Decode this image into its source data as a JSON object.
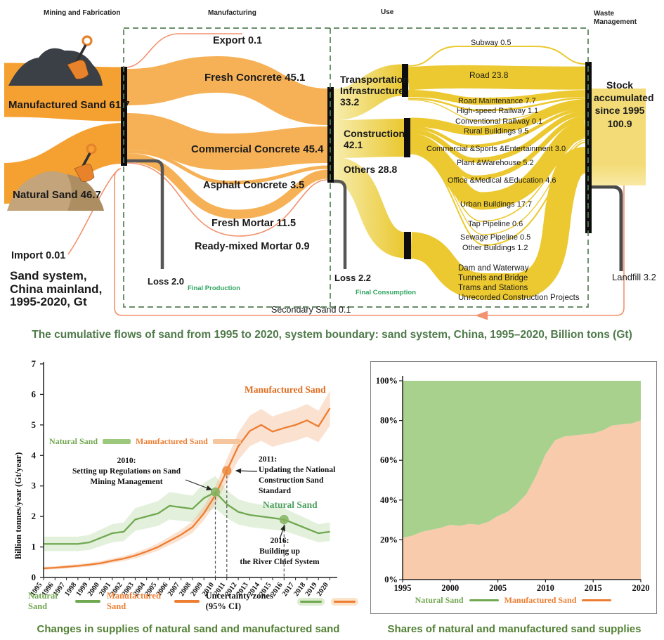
{
  "sankey": {
    "stage_headers": {
      "mining": "Mining and Fabrication",
      "manufacturing": "Manufacturing",
      "use": "Use",
      "waste": "Waste Management"
    },
    "inputs": {
      "manufactured": "Manufactured Sand 61.7",
      "natural": "Natural Sand 46.7",
      "import": "Import 0.01",
      "system_title": "Sand system,\nChina mainland,\n1995-2020, Gt"
    },
    "products": {
      "export": "Export 0.1",
      "fresh_concrete": "Fresh Concrete 45.1",
      "commercial_concrete": "Commercial Concrete 45.4",
      "asphalt_concrete": "Asphalt Concrete 3.5",
      "fresh_mortar": "Fresh Mortar 11.5",
      "ready_mixed_mortar": "Ready-mixed Mortar 0.9",
      "loss": "Loss 2.0",
      "final_production": "Final Production"
    },
    "use_sectors": {
      "transportation": "Transportation\nInfrastructure\n 33.2",
      "construction": "Construction\n42.1",
      "others": "Others 28.8",
      "loss": "Loss 2.2",
      "final_consumption": "Final Consumption"
    },
    "end_uses": {
      "subway": "Subway 0.5",
      "road": "Road 23.8",
      "road_maintenance": "Road Maintenance 7.7",
      "high_speed_railway": "High-speed Railway 1.1",
      "conventional_railway": "Conventional Railway 0.1",
      "rural_buildings": "Rural Buildings 9.5",
      "commercial_sports": "Commercial &Sports &Entertainment 3.0",
      "plant_warehouse": "Plant &Warehouse 5.2",
      "office_medical": "Office &Medical &Education 4.6",
      "urban_buildings": "Urban Buildings 17.7",
      "tap_pipeline": "Tap Pipeline 0.6",
      "sewage_pipeline": "Sewage Pipeline 0.5",
      "other_buildings": "Other Buildings 1.2",
      "dam_block": "Dam and Waterway\nTunnels and Bridge\nTrams and Stations\nUnrecorded Construction Projects"
    },
    "waste": {
      "stock": "Stock\naccumulated\nsince 1995\n100.9",
      "landfill": "Landfill 3.2",
      "secondary_sand": "Secondary Sand 0.1"
    }
  },
  "caption_top": "The cumulative flows of sand from 1995 to 2020, system boundary: sand system, China, 1995–2020, Billion tons (Gt)",
  "chart_data": [
    {
      "type": "line",
      "ylabel": "Billion tonnes/year (Gt/year)",
      "ylim": [
        0,
        7
      ],
      "yticks": [
        0,
        1,
        2,
        3,
        4,
        5,
        6,
        7
      ],
      "x": [
        1995,
        1996,
        1997,
        1998,
        1999,
        2000,
        2001,
        2002,
        2003,
        2004,
        2005,
        2006,
        2007,
        2008,
        2009,
        2010,
        2011,
        2012,
        2013,
        2014,
        2015,
        2016,
        2017,
        2018,
        2019,
        2020
      ],
      "series": [
        {
          "name": "Natural Sand",
          "color": "#6FA850",
          "values": [
            1.1,
            1.1,
            1.1,
            1.1,
            1.15,
            1.3,
            1.45,
            1.5,
            1.9,
            2.0,
            2.1,
            2.35,
            2.3,
            2.25,
            2.6,
            2.8,
            2.4,
            2.15,
            2.05,
            2.0,
            1.95,
            1.9,
            1.75,
            1.6,
            1.45,
            1.5
          ]
        },
        {
          "name": "Manufactured Sand",
          "color": "#ED7D31",
          "values": [
            0.3,
            0.32,
            0.35,
            0.38,
            0.42,
            0.47,
            0.55,
            0.62,
            0.72,
            0.85,
            1.0,
            1.2,
            1.4,
            1.65,
            2.1,
            2.7,
            3.5,
            4.3,
            4.8,
            5.0,
            4.78,
            4.9,
            5.0,
            5.15,
            4.95,
            5.55
          ]
        }
      ],
      "legend_inplot": [
        "Natural Sand",
        "Manufactured Sand"
      ],
      "legend_bottom": [
        "Natural Sand",
        "Manufactured Sand",
        "Uncertainty zones (95% CI)"
      ],
      "series_labels": {
        "manufactured": "Manufactured Sand",
        "natural": "Natural Sand"
      },
      "annotations": [
        {
          "text": "2010:\nSetting up Regulations on Sand\nMining Management",
          "year": 2010,
          "value": 2.8,
          "series": "Natural Sand"
        },
        {
          "text": "2011:\nUpdating the National\nConstruction Sand\nStandard",
          "year": 2011,
          "value": 3.5,
          "series": "Manufactured Sand"
        },
        {
          "text": "2016:\nBuilding up\nthe River Chief System",
          "year": 2016,
          "value": 1.9,
          "series": "Natural Sand"
        }
      ],
      "caption": "Changes in supplies of natural sand and manufactured sand"
    },
    {
      "type": "area",
      "stacked_percent": true,
      "x": [
        1995,
        1996,
        1997,
        1998,
        1999,
        2000,
        2001,
        2002,
        2003,
        2004,
        2005,
        2006,
        2007,
        2008,
        2009,
        2010,
        2011,
        2012,
        2013,
        2014,
        2015,
        2016,
        2017,
        2018,
        2019,
        2020
      ],
      "xticks": [
        1995,
        2000,
        2005,
        2010,
        2015,
        2020
      ],
      "ytick_labels": [
        "0%",
        "20%",
        "40%",
        "60%",
        "80%",
        "100%"
      ],
      "series": [
        {
          "name": "Manufactured Sand",
          "area_color": "#F8CBAD",
          "line_color": "#ED7D31",
          "share_percent": [
            21,
            22,
            24,
            25,
            26,
            27.5,
            27,
            28,
            27.5,
            29,
            32,
            34,
            38,
            43,
            52,
            63,
            70,
            72,
            72.5,
            73,
            73.5,
            75,
            77.5,
            78,
            78.5,
            80
          ]
        },
        {
          "name": "Natural Sand",
          "area_color": "#A9D18E",
          "line_color": "#6FA850",
          "share_percent": [
            79,
            78,
            76,
            75,
            74,
            72.5,
            73,
            72,
            72.5,
            71,
            68,
            66,
            62,
            57,
            48,
            37,
            30,
            28,
            27.5,
            27,
            26.5,
            25,
            22.5,
            22,
            21.5,
            20
          ]
        }
      ],
      "legend": [
        "Natural Sand",
        "Manufactured Sand"
      ],
      "caption": "Shares of natural and manufactured sand supplies"
    }
  ],
  "colors": {
    "sankey_orange": "#F5A132",
    "sankey_orange_light": "#F6B156",
    "sankey_gold": "#ECC930",
    "sankey_pale_yellow": "#F8EFB4",
    "stock_yellow": "#F3DB77",
    "salmon_line": "#F2926E",
    "loss_gray": "#565656",
    "boundary_green": "#567F56",
    "caption_green": "#4F7A4A",
    "bottom_caption_green": "#538135"
  }
}
